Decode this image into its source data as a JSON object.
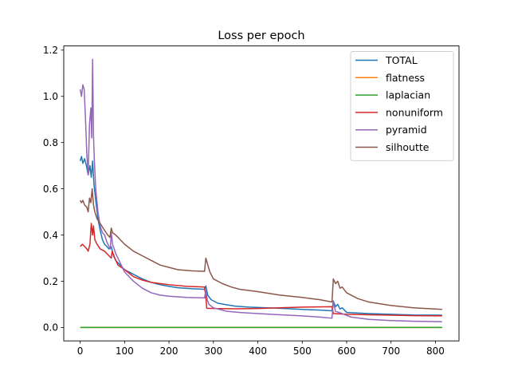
{
  "chart_data": {
    "type": "line",
    "title": "Loss per epoch",
    "xlabel": "",
    "ylabel": "",
    "xlim": [
      -37,
      853
    ],
    "ylim": [
      -0.058,
      1.218
    ],
    "x_ticks": [
      0,
      100,
      200,
      300,
      400,
      500,
      600,
      700,
      800
    ],
    "y_ticks": [
      0.0,
      0.2,
      0.4,
      0.6,
      0.8,
      1.0,
      1.2
    ],
    "grid": false,
    "legend_position": "top-right",
    "series": [
      {
        "name": "TOTAL",
        "color": "#1f77b4",
        "points": [
          [
            0,
            0.72
          ],
          [
            3,
            0.74
          ],
          [
            6,
            0.71
          ],
          [
            10,
            0.73
          ],
          [
            14,
            0.7
          ],
          [
            18,
            0.66
          ],
          [
            22,
            0.7
          ],
          [
            25,
            0.65
          ],
          [
            28,
            0.72
          ],
          [
            31,
            0.62
          ],
          [
            35,
            0.55
          ],
          [
            40,
            0.47
          ],
          [
            45,
            0.42
          ],
          [
            50,
            0.38
          ],
          [
            55,
            0.36
          ],
          [
            60,
            0.35
          ],
          [
            65,
            0.34
          ],
          [
            70,
            0.35
          ],
          [
            75,
            0.31
          ],
          [
            80,
            0.29
          ],
          [
            90,
            0.27
          ],
          [
            100,
            0.25
          ],
          [
            120,
            0.23
          ],
          [
            140,
            0.21
          ],
          [
            160,
            0.195
          ],
          [
            180,
            0.185
          ],
          [
            200,
            0.178
          ],
          [
            220,
            0.172
          ],
          [
            250,
            0.168
          ],
          [
            280,
            0.165
          ],
          [
            283,
            0.18
          ],
          [
            287,
            0.14
          ],
          [
            295,
            0.12
          ],
          [
            310,
            0.105
          ],
          [
            330,
            0.098
          ],
          [
            350,
            0.092
          ],
          [
            380,
            0.088
          ],
          [
            420,
            0.085
          ],
          [
            460,
            0.082
          ],
          [
            500,
            0.078
          ],
          [
            540,
            0.075
          ],
          [
            567,
            0.072
          ],
          [
            570,
            0.115
          ],
          [
            575,
            0.09
          ],
          [
            580,
            0.1
          ],
          [
            585,
            0.08
          ],
          [
            590,
            0.085
          ],
          [
            600,
            0.065
          ],
          [
            650,
            0.06
          ],
          [
            700,
            0.057
          ],
          [
            750,
            0.054
          ],
          [
            815,
            0.053
          ]
        ]
      },
      {
        "name": "flatness",
        "color": "#ff7f0e",
        "points": [
          [
            0,
            0.0
          ],
          [
            815,
            0.0
          ]
        ]
      },
      {
        "name": "laplacian",
        "color": "#2ca02c",
        "points": [
          [
            0,
            0.0
          ],
          [
            815,
            0.0
          ]
        ]
      },
      {
        "name": "nonuniform",
        "color": "#d62728",
        "points": [
          [
            0,
            0.35
          ],
          [
            5,
            0.36
          ],
          [
            10,
            0.35
          ],
          [
            15,
            0.34
          ],
          [
            18,
            0.33
          ],
          [
            22,
            0.36
          ],
          [
            25,
            0.45
          ],
          [
            28,
            0.4
          ],
          [
            30,
            0.44
          ],
          [
            33,
            0.38
          ],
          [
            38,
            0.36
          ],
          [
            45,
            0.34
          ],
          [
            55,
            0.33
          ],
          [
            65,
            0.31
          ],
          [
            70,
            0.3
          ],
          [
            72,
            0.33
          ],
          [
            78,
            0.3
          ],
          [
            85,
            0.27
          ],
          [
            100,
            0.25
          ],
          [
            120,
            0.22
          ],
          [
            140,
            0.205
          ],
          [
            160,
            0.195
          ],
          [
            180,
            0.19
          ],
          [
            200,
            0.185
          ],
          [
            240,
            0.178
          ],
          [
            280,
            0.175
          ],
          [
            283,
            0.13
          ],
          [
            285,
            0.083
          ],
          [
            300,
            0.082
          ],
          [
            350,
            0.081
          ],
          [
            400,
            0.082
          ],
          [
            450,
            0.085
          ],
          [
            500,
            0.088
          ],
          [
            567,
            0.09
          ],
          [
            570,
            0.06
          ],
          [
            600,
            0.057
          ],
          [
            650,
            0.055
          ],
          [
            700,
            0.053
          ],
          [
            750,
            0.051
          ],
          [
            815,
            0.05
          ]
        ]
      },
      {
        "name": "pyramid",
        "color": "#9467bd",
        "points": [
          [
            0,
            1.03
          ],
          [
            3,
            1.0
          ],
          [
            6,
            1.05
          ],
          [
            9,
            1.03
          ],
          [
            12,
            0.9
          ],
          [
            15,
            0.75
          ],
          [
            18,
            0.66
          ],
          [
            21,
            0.88
          ],
          [
            24,
            0.95
          ],
          [
            26,
            0.82
          ],
          [
            28,
            1.16
          ],
          [
            30,
            0.83
          ],
          [
            32,
            0.72
          ],
          [
            35,
            0.6
          ],
          [
            40,
            0.5
          ],
          [
            45,
            0.44
          ],
          [
            50,
            0.41
          ],
          [
            55,
            0.4
          ],
          [
            60,
            0.37
          ],
          [
            65,
            0.35
          ],
          [
            68,
            0.34
          ],
          [
            70,
            0.41
          ],
          [
            73,
            0.36
          ],
          [
            80,
            0.32
          ],
          [
            90,
            0.28
          ],
          [
            100,
            0.24
          ],
          [
            120,
            0.2
          ],
          [
            140,
            0.17
          ],
          [
            160,
            0.15
          ],
          [
            180,
            0.14
          ],
          [
            200,
            0.135
          ],
          [
            240,
            0.13
          ],
          [
            280,
            0.128
          ],
          [
            283,
            0.16
          ],
          [
            286,
            0.12
          ],
          [
            290,
            0.1
          ],
          [
            300,
            0.085
          ],
          [
            330,
            0.07
          ],
          [
            360,
            0.065
          ],
          [
            400,
            0.06
          ],
          [
            450,
            0.055
          ],
          [
            500,
            0.05
          ],
          [
            540,
            0.045
          ],
          [
            567,
            0.04
          ],
          [
            570,
            0.11
          ],
          [
            575,
            0.07
          ],
          [
            590,
            0.06
          ],
          [
            610,
            0.045
          ],
          [
            650,
            0.035
          ],
          [
            700,
            0.03
          ],
          [
            750,
            0.027
          ],
          [
            815,
            0.025
          ]
        ]
      },
      {
        "name": "silhoutte",
        "color": "#8c564b",
        "points": [
          [
            0,
            0.55
          ],
          [
            3,
            0.54
          ],
          [
            6,
            0.55
          ],
          [
            10,
            0.53
          ],
          [
            15,
            0.52
          ],
          [
            18,
            0.5
          ],
          [
            21,
            0.56
          ],
          [
            24,
            0.54
          ],
          [
            27,
            0.6
          ],
          [
            30,
            0.53
          ],
          [
            33,
            0.5
          ],
          [
            38,
            0.47
          ],
          [
            45,
            0.45
          ],
          [
            55,
            0.42
          ],
          [
            62,
            0.4
          ],
          [
            67,
            0.39
          ],
          [
            70,
            0.43
          ],
          [
            73,
            0.41
          ],
          [
            80,
            0.4
          ],
          [
            100,
            0.36
          ],
          [
            120,
            0.33
          ],
          [
            140,
            0.31
          ],
          [
            160,
            0.29
          ],
          [
            180,
            0.27
          ],
          [
            200,
            0.26
          ],
          [
            220,
            0.25
          ],
          [
            250,
            0.245
          ],
          [
            280,
            0.243
          ],
          [
            283,
            0.3
          ],
          [
            286,
            0.28
          ],
          [
            292,
            0.24
          ],
          [
            300,
            0.21
          ],
          [
            320,
            0.19
          ],
          [
            340,
            0.175
          ],
          [
            360,
            0.165
          ],
          [
            400,
            0.155
          ],
          [
            450,
            0.14
          ],
          [
            500,
            0.13
          ],
          [
            540,
            0.12
          ],
          [
            567,
            0.11
          ],
          [
            570,
            0.21
          ],
          [
            575,
            0.19
          ],
          [
            580,
            0.2
          ],
          [
            585,
            0.17
          ],
          [
            590,
            0.175
          ],
          [
            600,
            0.15
          ],
          [
            625,
            0.125
          ],
          [
            650,
            0.11
          ],
          [
            700,
            0.095
          ],
          [
            750,
            0.085
          ],
          [
            815,
            0.078
          ]
        ]
      }
    ]
  }
}
